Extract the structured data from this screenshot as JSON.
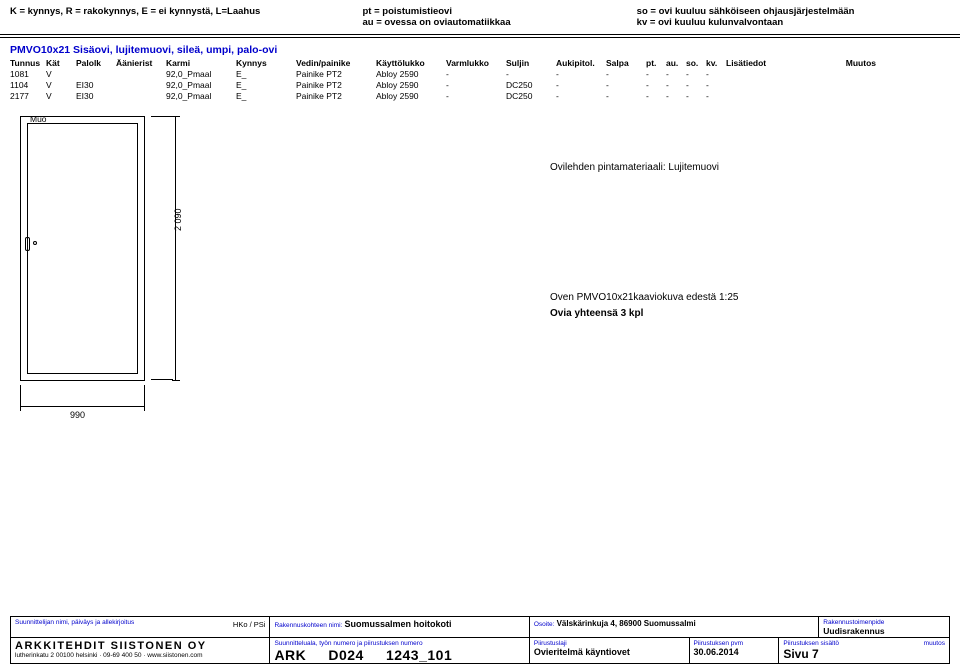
{
  "legend": {
    "col1": "K = kynnys, R = rakokynnys, E = ei kynnystä, L=Laahus",
    "col2a": "pt = poistumistieovi",
    "col2b": "au = ovessa on oviautomatiikkaa",
    "col3a": "so = ovi kuuluu sähköiseen ohjausjärjestelmään",
    "col3b": "kv = ovi kuuluu kulunvalvontaan"
  },
  "title": "PMVO10x21 Sisäovi, lujitemuovi, sileä, umpi, palo-ovi",
  "headers": {
    "tunnus": "Tunnus",
    "kat": "Kät",
    "palolk": "Palolk",
    "aani": "Äänierist",
    "karmi": "Karmi",
    "kynnys": "Kynnys",
    "vedin": "Vedin/painike",
    "kaytto": "Käyttölukko",
    "varm": "Varmlukko",
    "suljin": "Suljin",
    "auki": "Aukipitol.",
    "salpa": "Salpa",
    "pt": "pt.",
    "au": "au.",
    "so": "so.",
    "kv": "kv.",
    "lisa": "Lisätiedot",
    "muutos": "Muutos"
  },
  "rows": [
    {
      "tunnus": "1081",
      "kat": "V",
      "palolk": "",
      "aani": "",
      "karmi": "92,0_Pmaal",
      "kynnys": "E_",
      "vedin": "Painike PT2",
      "kaytto": "Abloy 2590",
      "varm": "-",
      "suljin": "-",
      "auki": "-",
      "salpa": "-",
      "pt": "-",
      "au": "-",
      "so": "-",
      "kv": "-",
      "lisa": "",
      "muutos": ""
    },
    {
      "tunnus": "1104",
      "kat": "V",
      "palolk": "EI30",
      "aani": "",
      "karmi": "92,0_Pmaal",
      "kynnys": "E_",
      "vedin": "Painike PT2",
      "kaytto": "Abloy 2590",
      "varm": "-",
      "suljin": "DC250",
      "auki": "-",
      "salpa": "-",
      "pt": "-",
      "au": "-",
      "so": "-",
      "kv": "-",
      "lisa": "",
      "muutos": ""
    },
    {
      "tunnus": "2177",
      "kat": "V",
      "palolk": "EI30",
      "aani": "",
      "karmi": "92,0_Pmaal",
      "kynnys": "E_",
      "vedin": "Painike PT2",
      "kaytto": "Abloy 2590",
      "varm": "-",
      "suljin": "DC250",
      "auki": "-",
      "salpa": "-",
      "pt": "-",
      "au": "-",
      "so": "-",
      "kv": "-",
      "lisa": "",
      "muutos": ""
    }
  ],
  "drawing": {
    "muo": "Muo",
    "height": "2 090",
    "width": "990",
    "material": "Ovilehden pintamateriaali: Lujitemuovi",
    "caption1": "Oven PMVO10x21kaaviokuva edestä 1:25",
    "caption2": "Ovia yhteensä 3 kpl"
  },
  "titleblock": {
    "r1c1_label": "Suunnittelijan nimi, päiväys ja allekirjoitus",
    "r1c1_right": "HKo / PSi",
    "r1c2_label": "Rakennuskohteen nimi:",
    "r1c2_val": "Suomussalmen hoitokoti",
    "r1c3_label": "Osoite:",
    "r1c3_val": "Välskärinkuja 4, 86900 Suomussalmi",
    "r1c4_label": "Rakennustoimenpide",
    "r1c4_val": "Uudisrakennus",
    "firm": "ARKKITEHDIT SIISTONEN OY",
    "firm_sub": "lutherinkatu 2 00100 helsinki · 09-69 400 50 · www.siistonen.com",
    "r2c2_label": "Suunnitteluala, työn numero ja piirustuksen numero",
    "r2c2a": "ARK",
    "r2c2b": "D024",
    "r2c2c": "1243_101",
    "r2c3_label": "Piirustuslaji",
    "r2c3_val": "Ovieritelmä käyntiovet",
    "r2c4_label": "Piirustuksen pvm",
    "r2c4_val": "30.06.2014",
    "r2c5_label": "Piirustuksen sisältö",
    "r2c5_val": "Sivu 7",
    "r2c5_right": "muutos"
  }
}
